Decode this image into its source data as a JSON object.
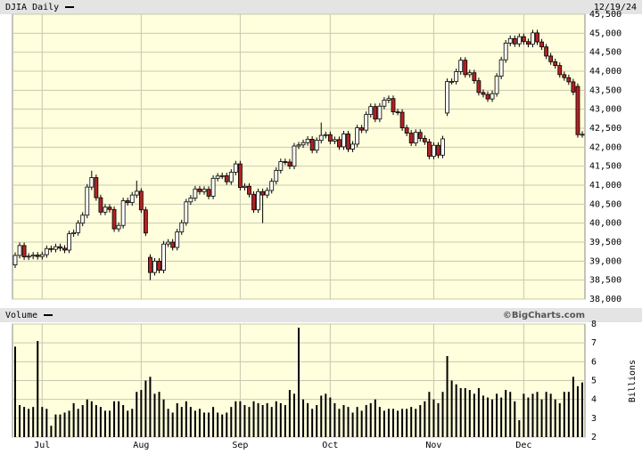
{
  "chart_data": {
    "type": "candlestick",
    "title": "DJIA Daily",
    "date": "12/19/24",
    "volume_title": "Volume",
    "source": "©BigCharts.com",
    "y2_label": "Billions",
    "up_color": "#ffffff",
    "down_color": "#b22222",
    "volume_color": "#000000",
    "grid": true,
    "categories": [
      null,
      null,
      null,
      null,
      null,
      null,
      "Jul",
      null,
      null,
      null,
      null,
      null,
      null,
      null,
      null,
      null,
      null,
      null,
      null,
      null,
      null,
      null,
      null,
      null,
      null,
      null,
      null,
      null,
      "Aug",
      null,
      null,
      null,
      null,
      null,
      null,
      null,
      null,
      null,
      null,
      null,
      null,
      null,
      null,
      null,
      null,
      null,
      null,
      null,
      null,
      null,
      "Sep",
      null,
      null,
      null,
      null,
      null,
      null,
      null,
      null,
      null,
      null,
      null,
      null,
      null,
      null,
      null,
      null,
      null,
      null,
      null,
      "Oct",
      null,
      null,
      null,
      null,
      null,
      null,
      null,
      null,
      null,
      null,
      null,
      null,
      null,
      null,
      null,
      null,
      null,
      null,
      null,
      null,
      null,
      null,
      "Nov",
      null,
      null,
      null,
      null,
      null,
      null,
      null,
      null,
      null,
      null,
      null,
      null,
      null,
      null,
      null,
      null,
      null,
      null,
      null,
      "Dec",
      null,
      null,
      null,
      null,
      null,
      null,
      null,
      null,
      null,
      null,
      null,
      null,
      null
    ],
    "open": [
      38900,
      39150,
      39410,
      39110,
      39130,
      39160,
      39120,
      39170,
      39330,
      39310,
      39380,
      39340,
      39290,
      39720,
      39750,
      40000,
      40210,
      40950,
      41200,
      40670,
      40290,
      40420,
      40360,
      39850,
      39940,
      40590,
      40540,
      40740,
      40840,
      40350,
      39100,
      38700,
      39000,
      38760,
      39450,
      39500,
      39360,
      39770,
      40010,
      40560,
      40660,
      40900,
      40830,
      40890,
      40710,
      41180,
      41240,
      41250,
      41090,
      41340,
      41560,
      40940,
      40970,
      40760,
      40350,
      40830,
      40740,
      40860,
      41100,
      41390,
      41620,
      41610,
      41500,
      42030,
      42060,
      42120,
      42210,
      41920,
      42180,
      42310,
      42330,
      42160,
      42200,
      42010,
      42350,
      41950,
      42080,
      42510,
      42450,
      42860,
      43070,
      42740,
      43080,
      43240,
      43280,
      42930,
      42920,
      42510,
      42370,
      42110,
      42390,
      42230,
      42140,
      41760,
      42050,
      41790,
      42900,
      43730,
      43730,
      43990,
      44290,
      43910,
      43960,
      43750,
      43440,
      43390,
      43270,
      43410,
      43870,
      44300,
      44740,
      44860,
      44720,
      44910,
      44780,
      44710,
      45010,
      44770,
      44640,
      44400,
      44250,
      44150,
      43910,
      43830,
      43720,
      43600,
      42330
    ],
    "high": [
      39230,
      39490,
      39490,
      39210,
      39240,
      39240,
      39250,
      39410,
      39410,
      39460,
      39460,
      39420,
      39800,
      39830,
      40080,
      40290,
      41030,
      41380,
      41280,
      40750,
      40500,
      40500,
      40440,
      40020,
      40670,
      40670,
      40820,
      41120,
      40920,
      40430,
      39180,
      39080,
      39080,
      39530,
      39580,
      39580,
      39850,
      40090,
      40640,
      40740,
      40980,
      40980,
      40970,
      40970,
      41260,
      41320,
      41330,
      41330,
      41420,
      41640,
      41640,
      41050,
      41050,
      40840,
      40910,
      40910,
      40940,
      41180,
      41470,
      41700,
      41700,
      41690,
      42110,
      42140,
      42200,
      42290,
      42290,
      42260,
      42650,
      42410,
      42410,
      42280,
      42280,
      42430,
      42430,
      42160,
      42590,
      42590,
      42940,
      43150,
      43150,
      43160,
      43320,
      43360,
      43360,
      43010,
      43000,
      42590,
      42450,
      42470,
      42470,
      42310,
      42220,
      42130,
      42130,
      42300,
      43810,
      43810,
      44070,
      44370,
      44370,
      44040,
      44040,
      43830,
      43520,
      43470,
      43490,
      43950,
      44380,
      44820,
      44940,
      44940,
      44990,
      44990,
      44860,
      45090,
      45090,
      44850,
      44720,
      44480,
      44330,
      44230,
      43990,
      43910,
      43800,
      43680,
      42420
    ],
    "low": [
      38820,
      39070,
      39030,
      39030,
      39050,
      39040,
      39040,
      39090,
      39230,
      39230,
      39260,
      39210,
      39210,
      39640,
      39670,
      39920,
      40130,
      40870,
      40590,
      40210,
      40210,
      40280,
      39770,
      39770,
      39860,
      40460,
      40460,
      40660,
      40270,
      39660,
      38500,
      38620,
      38680,
      38680,
      39370,
      39280,
      39280,
      39690,
      39930,
      40480,
      40580,
      40750,
      40750,
      40630,
      40630,
      41100,
      41160,
      41010,
      41010,
      41260,
      40860,
      40860,
      40680,
      40270,
      40270,
      40000,
      40660,
      40780,
      41020,
      41310,
      41530,
      41420,
      41420,
      41950,
      41980,
      42040,
      41840,
      41840,
      42100,
      42230,
      42080,
      42080,
      41930,
      41930,
      41870,
      41870,
      42000,
      42370,
      42370,
      42780,
      42660,
      42660,
      43000,
      43160,
      42850,
      42840,
      42430,
      42290,
      42030,
      42030,
      42150,
      42060,
      41680,
      41680,
      41710,
      41710,
      42820,
      43650,
      43650,
      43910,
      43830,
      43830,
      43670,
      43360,
      43310,
      43190,
      43190,
      43330,
      43790,
      44220,
      44660,
      44640,
      44640,
      44700,
      44630,
      44630,
      44690,
      44560,
      44320,
      44170,
      44070,
      43830,
      43750,
      43640,
      43370,
      42250,
      42250
    ],
    "close": [
      39150,
      39410,
      39110,
      39130,
      39160,
      39120,
      39170,
      39330,
      39310,
      39380,
      39340,
      39290,
      39720,
      39750,
      40000,
      40210,
      40950,
      41200,
      40670,
      40290,
      40420,
      40360,
      39850,
      39940,
      40590,
      40540,
      40740,
      40840,
      40350,
      39740,
      38700,
      39000,
      38760,
      39450,
      39500,
      39360,
      39770,
      40010,
      40560,
      40660,
      40900,
      40830,
      40890,
      40710,
      41180,
      41240,
      41250,
      41090,
      41340,
      41560,
      40940,
      40970,
      40760,
      40350,
      40830,
      40740,
      40860,
      41100,
      41390,
      41620,
      41610,
      41500,
      42030,
      42060,
      42120,
      42210,
      41920,
      42180,
      42310,
      42330,
      42160,
      42200,
      42010,
      42350,
      41950,
      42080,
      42510,
      42450,
      42860,
      43070,
      42740,
      43080,
      43240,
      43280,
      42930,
      42920,
      42510,
      42370,
      42110,
      42390,
      42230,
      42140,
      41760,
      42050,
      41790,
      42220,
      43730,
      43730,
      43990,
      44290,
      43910,
      43960,
      43750,
      43440,
      43390,
      43270,
      43410,
      43870,
      44300,
      44740,
      44860,
      44720,
      44910,
      44780,
      44710,
      45010,
      44770,
      44640,
      44400,
      44250,
      44150,
      43910,
      43830,
      43720,
      43450,
      42330,
      42340
    ],
    "volume": [
      6.8,
      3.7,
      3.6,
      3.5,
      3.6,
      7.1,
      3.6,
      3.5,
      2.6,
      3.2,
      3.2,
      3.3,
      3.4,
      3.8,
      3.5,
      3.7,
      4.0,
      3.9,
      3.7,
      3.6,
      3.4,
      3.4,
      3.9,
      3.9,
      3.7,
      3.4,
      3.5,
      4.4,
      4.5,
      5.0,
      5.2,
      4.3,
      4.4,
      4.0,
      3.5,
      3.3,
      3.8,
      3.6,
      3.9,
      3.6,
      3.4,
      3.5,
      3.3,
      3.3,
      3.6,
      3.3,
      3.2,
      3.3,
      3.6,
      3.9,
      3.9,
      3.7,
      3.6,
      3.9,
      3.8,
      3.7,
      3.8,
      3.6,
      3.9,
      3.8,
      3.7,
      4.5,
      4.3,
      7.8,
      4.0,
      3.8,
      3.5,
      3.7,
      4.2,
      4.3,
      4.1,
      3.8,
      3.5,
      3.7,
      3.6,
      3.3,
      3.6,
      3.4,
      3.7,
      3.8,
      4.0,
      3.6,
      3.4,
      3.5,
      3.5,
      3.4,
      3.5,
      3.5,
      3.6,
      3.5,
      3.7,
      3.9,
      4.4,
      4.0,
      3.8,
      4.4,
      6.3,
      5.0,
      4.8,
      4.6,
      4.6,
      4.5,
      4.3,
      4.6,
      4.2,
      4.1,
      4.0,
      4.3,
      4.1,
      4.5,
      4.4,
      3.9,
      2.9,
      4.3,
      4.1,
      4.3,
      4.4,
      4.0,
      4.4,
      4.3,
      4.0,
      3.8,
      4.4,
      4.4,
      5.2,
      4.7,
      4.9
    ],
    "ylim": [
      38000,
      45500
    ],
    "yticks": [
      {
        "value": 38000,
        "label": "38,000"
      },
      {
        "value": 38500,
        "label": "38,500"
      },
      {
        "value": 39000,
        "label": "39,000"
      },
      {
        "value": 39500,
        "label": "39,500"
      },
      {
        "value": 40000,
        "label": "40,000"
      },
      {
        "value": 40500,
        "label": "40,500"
      },
      {
        "value": 41000,
        "label": "41,000"
      },
      {
        "value": 41500,
        "label": "41,500"
      },
      {
        "value": 42000,
        "label": "42,000"
      },
      {
        "value": 42500,
        "label": "42,500"
      },
      {
        "value": 43000,
        "label": "43,000"
      },
      {
        "value": 43500,
        "label": "43,500"
      },
      {
        "value": 44000,
        "label": "44,000"
      },
      {
        "value": 44500,
        "label": "44,500"
      },
      {
        "value": 45000,
        "label": "45,000"
      },
      {
        "value": 45500,
        "label": "45,500"
      }
    ],
    "y2lim": [
      2,
      8
    ],
    "y2ticks": [
      2,
      3,
      4,
      5,
      6,
      7,
      8
    ]
  }
}
